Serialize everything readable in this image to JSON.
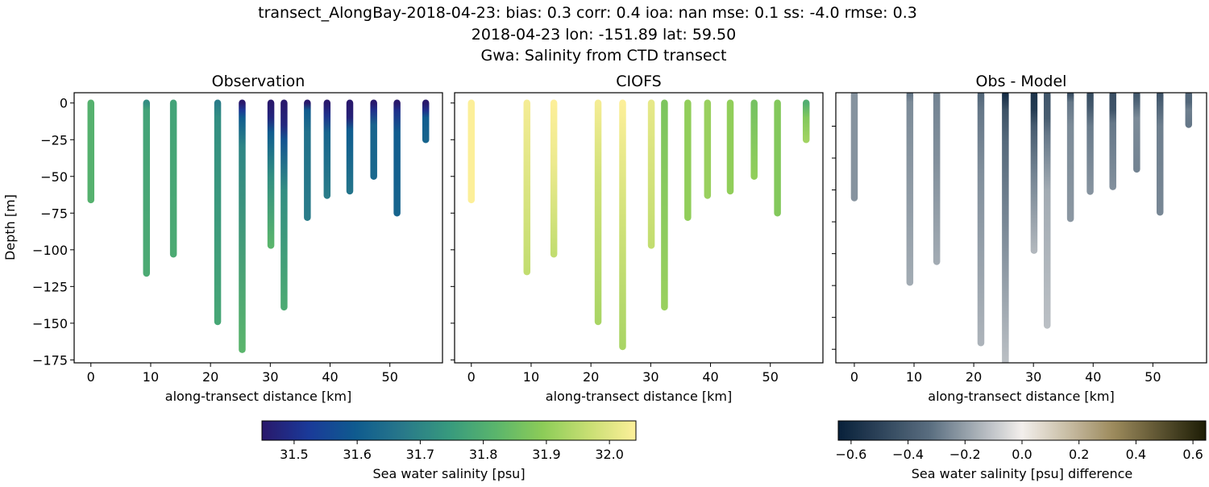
{
  "title_lines": [
    "transect_AlongBay-2018-04-23: bias: 0.3  corr: 0.4  ioa: nan  mse: 0.1  ss: -4.0  rmse: 0.3",
    "2018-04-23 lon: -151.89 lat: 59.50",
    "Gwa: Salinity from CTD transect"
  ],
  "chart_data": [
    {
      "type": "scatter",
      "title": "Observation",
      "xlabel": "along-transect distance [km]",
      "ylabel": "Depth [m]",
      "xlim": [
        -2.8,
        58.8
      ],
      "ylim": [
        -177,
        7
      ],
      "xticks": [
        0,
        10,
        20,
        30,
        40,
        50
      ],
      "xticklabels": [
        "0",
        "10",
        "20",
        "30",
        "40",
        "50"
      ],
      "yticks": [
        0,
        -25,
        -50,
        -75,
        -100,
        -125,
        -150,
        -175
      ],
      "yticklabels": [
        "0",
        "−25",
        "−50",
        "−75",
        "−100",
        "−125",
        "−150",
        "−175"
      ],
      "grid": false,
      "colormap": "haline",
      "profiles": [
        {
          "x": 0,
          "bottom": -66,
          "values": [
            [
              0,
              31.81
            ],
            [
              66,
              31.81
            ]
          ]
        },
        {
          "x": 9.3,
          "bottom": -116,
          "values": [
            [
              0,
              31.72
            ],
            [
              5,
              31.77
            ],
            [
              116,
              31.79
            ]
          ]
        },
        {
          "x": 13.8,
          "bottom": -103,
          "values": [
            [
              0,
              31.77
            ],
            [
              103,
              31.79
            ]
          ]
        },
        {
          "x": 21.2,
          "bottom": -149,
          "values": [
            [
              0,
              31.68
            ],
            [
              10,
              31.72
            ],
            [
              149,
              31.78
            ]
          ]
        },
        {
          "x": 25.3,
          "bottom": -168,
          "values": [
            [
              0,
              31.45
            ],
            [
              5,
              31.52
            ],
            [
              10,
              31.6
            ],
            [
              30,
              31.7
            ],
            [
              168,
              31.82
            ]
          ]
        },
        {
          "x": 30.1,
          "bottom": -97,
          "values": [
            [
              0,
              31.45
            ],
            [
              10,
              31.48
            ],
            [
              20,
              31.6
            ],
            [
              50,
              31.72
            ],
            [
              97,
              31.82
            ]
          ]
        },
        {
          "x": 32.3,
          "bottom": -139,
          "values": [
            [
              0,
              31.45
            ],
            [
              15,
              31.48
            ],
            [
              25,
              31.58
            ],
            [
              60,
              31.72
            ],
            [
              139,
              31.79
            ]
          ]
        },
        {
          "x": 36.2,
          "bottom": -78,
          "values": [
            [
              0,
              31.45
            ],
            [
              5,
              31.6
            ],
            [
              20,
              31.65
            ],
            [
              78,
              31.68
            ]
          ]
        },
        {
          "x": 39.5,
          "bottom": -63,
          "values": [
            [
              0,
              31.45
            ],
            [
              8,
              31.5
            ],
            [
              20,
              31.62
            ],
            [
              63,
              31.68
            ]
          ]
        },
        {
          "x": 43.3,
          "bottom": -60,
          "values": [
            [
              0,
              31.45
            ],
            [
              10,
              31.47
            ],
            [
              18,
              31.6
            ],
            [
              60,
              31.66
            ]
          ]
        },
        {
          "x": 47.3,
          "bottom": -50,
          "values": [
            [
              0,
              31.45
            ],
            [
              5,
              31.5
            ],
            [
              15,
              31.62
            ],
            [
              50,
              31.63
            ]
          ]
        },
        {
          "x": 51.2,
          "bottom": -75,
          "values": [
            [
              0,
              31.45
            ],
            [
              5,
              31.5
            ],
            [
              20,
              31.6
            ],
            [
              75,
              31.62
            ]
          ]
        },
        {
          "x": 56.0,
          "bottom": -25,
          "values": [
            [
              0,
              31.45
            ],
            [
              5,
              31.5
            ],
            [
              10,
              31.6
            ],
            [
              25,
              31.62
            ]
          ]
        }
      ]
    },
    {
      "type": "scatter",
      "title": "CIOFS",
      "xlabel": "along-transect distance [km]",
      "xlim": [
        -2.8,
        58.8
      ],
      "ylim": [
        -177,
        7
      ],
      "xticks": [
        0,
        10,
        20,
        30,
        40,
        50
      ],
      "xticklabels": [
        "0",
        "10",
        "20",
        "30",
        "40",
        "50"
      ],
      "yticks": [
        0,
        -25,
        -50,
        -75,
        -100,
        -125,
        -150,
        -175
      ],
      "grid": false,
      "colormap": "haline",
      "profiles": [
        {
          "x": 0,
          "bottom": -66,
          "values": [
            [
              0,
              32.04
            ],
            [
              66,
              32.04
            ]
          ]
        },
        {
          "x": 9.3,
          "bottom": -115,
          "values": [
            [
              0,
              32.03
            ],
            [
              115,
              31.96
            ]
          ]
        },
        {
          "x": 13.8,
          "bottom": -103,
          "values": [
            [
              0,
              32.04
            ],
            [
              40,
              32.02
            ],
            [
              103,
              31.96
            ]
          ]
        },
        {
          "x": 21.2,
          "bottom": -149,
          "values": [
            [
              0,
              32.03
            ],
            [
              50,
              31.98
            ],
            [
              149,
              31.93
            ]
          ]
        },
        {
          "x": 25.3,
          "bottom": -166,
          "values": [
            [
              0,
              32.04
            ],
            [
              80,
              31.98
            ],
            [
              166,
              31.93
            ]
          ]
        },
        {
          "x": 30.1,
          "bottom": -97,
          "values": [
            [
              0,
              32.01
            ],
            [
              97,
              31.96
            ]
          ]
        },
        {
          "x": 32.3,
          "bottom": -139,
          "values": [
            [
              0,
              31.87
            ],
            [
              139,
              31.91
            ]
          ]
        },
        {
          "x": 36.2,
          "bottom": -78,
          "values": [
            [
              0,
              31.9
            ],
            [
              78,
              31.9
            ]
          ]
        },
        {
          "x": 39.5,
          "bottom": -63,
          "values": [
            [
              0,
              31.91
            ],
            [
              63,
              31.91
            ]
          ]
        },
        {
          "x": 43.3,
          "bottom": -60,
          "values": [
            [
              0,
              31.9
            ],
            [
              60,
              31.9
            ]
          ]
        },
        {
          "x": 47.3,
          "bottom": -50,
          "values": [
            [
              0,
              31.86
            ],
            [
              50,
              31.9
            ]
          ]
        },
        {
          "x": 51.2,
          "bottom": -75,
          "values": [
            [
              0,
              31.88
            ],
            [
              75,
              31.88
            ]
          ]
        },
        {
          "x": 56.0,
          "bottom": -25,
          "values": [
            [
              0,
              31.8
            ],
            [
              10,
              31.88
            ],
            [
              25,
              31.92
            ]
          ]
        }
      ]
    },
    {
      "type": "scatter",
      "title": "Obs - Model",
      "xlabel": "along-transect distance [km]",
      "xlim": [
        -3.1,
        59
      ],
      "ylim": [
        -168.5,
        1
      ],
      "xticks": [
        0,
        10,
        20,
        30,
        40,
        50
      ],
      "xticklabels": [
        "0",
        "10",
        "20",
        "30",
        "40",
        "50"
      ],
      "yticks": [
        -20,
        -40,
        -60,
        -80,
        -100,
        -120,
        -140,
        -160
      ],
      "grid": false,
      "colormap": "diff",
      "profiles": [
        {
          "x": 0,
          "bottom": -65,
          "values": [
            [
              0,
              -0.23
            ],
            [
              65,
              -0.23
            ]
          ]
        },
        {
          "x": 9.3,
          "bottom": -118,
          "values": [
            [
              0,
              -0.3
            ],
            [
              5,
              -0.25
            ],
            [
              118,
              -0.17
            ]
          ]
        },
        {
          "x": 13.8,
          "bottom": -105,
          "values": [
            [
              0,
              -0.27
            ],
            [
              40,
              -0.24
            ],
            [
              105,
              -0.17
            ]
          ]
        },
        {
          "x": 21.2,
          "bottom": -156,
          "values": [
            [
              0,
              -0.35
            ],
            [
              10,
              -0.3
            ],
            [
              50,
              -0.24
            ],
            [
              156,
              -0.15
            ]
          ]
        },
        {
          "x": 25.3,
          "bottom": -175,
          "values": [
            [
              0,
              -0.59
            ],
            [
              5,
              -0.52
            ],
            [
              10,
              -0.44
            ],
            [
              30,
              -0.34
            ],
            [
              80,
              -0.26
            ],
            [
              175,
              -0.11
            ]
          ]
        },
        {
          "x": 30.1,
          "bottom": -98,
          "values": [
            [
              0,
              -0.56
            ],
            [
              10,
              -0.53
            ],
            [
              20,
              -0.4
            ],
            [
              50,
              -0.27
            ],
            [
              98,
              -0.14
            ]
          ]
        },
        {
          "x": 32.3,
          "bottom": -145,
          "values": [
            [
              0,
              -0.42
            ],
            [
              15,
              -0.39
            ],
            [
              25,
              -0.3
            ],
            [
              60,
              -0.17
            ],
            [
              145,
              -0.12
            ]
          ]
        },
        {
          "x": 36.2,
          "bottom": -78,
          "values": [
            [
              0,
              -0.45
            ],
            [
              5,
              -0.3
            ],
            [
              20,
              -0.25
            ],
            [
              78,
              -0.22
            ]
          ]
        },
        {
          "x": 39.5,
          "bottom": -61,
          "values": [
            [
              0,
              -0.46
            ],
            [
              8,
              -0.41
            ],
            [
              20,
              -0.29
            ],
            [
              61,
              -0.23
            ]
          ]
        },
        {
          "x": 43.3,
          "bottom": -58,
          "values": [
            [
              0,
              -0.45
            ],
            [
              10,
              -0.43
            ],
            [
              18,
              -0.3
            ],
            [
              58,
              -0.24
            ]
          ]
        },
        {
          "x": 47.3,
          "bottom": -47,
          "values": [
            [
              0,
              -0.41
            ],
            [
              5,
              -0.36
            ],
            [
              15,
              -0.25
            ],
            [
              47,
              -0.27
            ]
          ]
        },
        {
          "x": 51.2,
          "bottom": -74,
          "values": [
            [
              0,
              -0.43
            ],
            [
              5,
              -0.38
            ],
            [
              20,
              -0.28
            ],
            [
              74,
              -0.26
            ]
          ]
        },
        {
          "x": 56.0,
          "bottom": -19,
          "values": [
            [
              0,
              -0.35
            ],
            [
              5,
              -0.35
            ],
            [
              10,
              -0.28
            ],
            [
              19,
              -0.3
            ]
          ]
        }
      ]
    }
  ],
  "colorbars": [
    {
      "label": "Sea water salinity [psu]",
      "range": [
        31.449,
        32.042
      ],
      "ticks": [
        31.5,
        31.6,
        31.7,
        31.8,
        31.9,
        32.0
      ],
      "ticklabels": [
        "31.5",
        "31.6",
        "31.7",
        "31.8",
        "31.9",
        "32.0"
      ],
      "colormap": "haline"
    },
    {
      "label": "Sea water salinity [psu] difference",
      "range": [
        -0.645,
        0.645
      ],
      "ticks": [
        -0.6,
        -0.4,
        -0.2,
        0.0,
        0.2,
        0.4,
        0.6
      ],
      "ticklabels": [
        "−0.6",
        "−0.4",
        "−0.2",
        "0.0",
        "0.2",
        "0.4",
        "0.6"
      ],
      "colormap": "diff"
    }
  ],
  "colormaps": {
    "haline": [
      "#29186b",
      "#1a3a99",
      "#0f5b8f",
      "#28788a",
      "#379a7e",
      "#5ab56c",
      "#8ccc58",
      "#c8df73",
      "#fdef9a"
    ],
    "diff": [
      "#08203a",
      "#5a6e80",
      "#f3efec",
      "#9c8a5c",
      "#1c1c05"
    ]
  }
}
